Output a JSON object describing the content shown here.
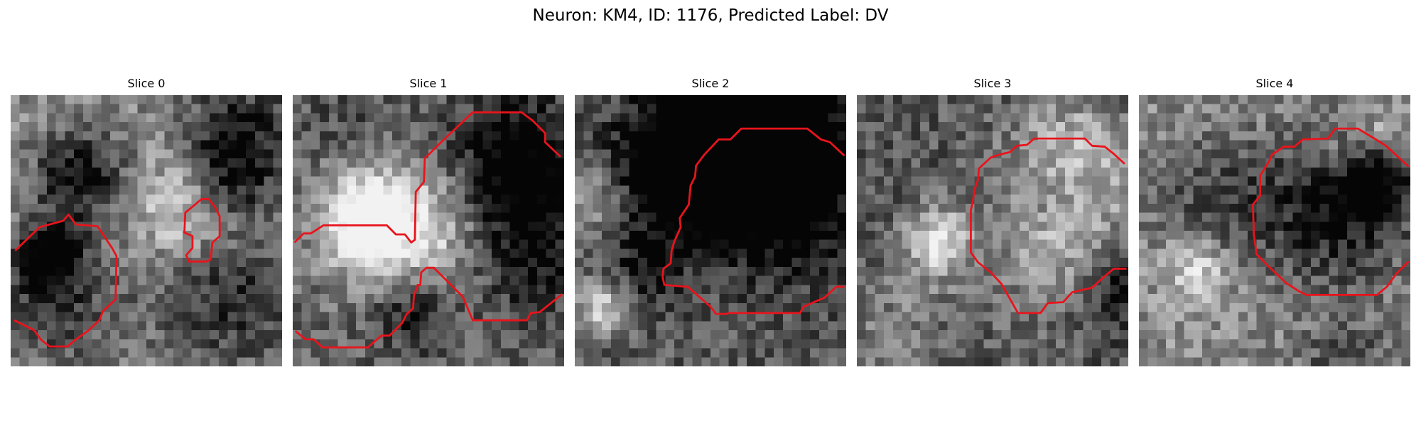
{
  "figure": {
    "title": "Neuron: KM4, ID: 1176, Predicted Label: DV"
  },
  "panels": [
    {
      "label": "Slice 0"
    },
    {
      "label": "Slice 1"
    },
    {
      "label": "Slice 2"
    },
    {
      "label": "Slice 3"
    },
    {
      "label": "Slice 4"
    }
  ],
  "colors": {
    "contour": "#e8141c",
    "background": "#ffffff"
  }
}
